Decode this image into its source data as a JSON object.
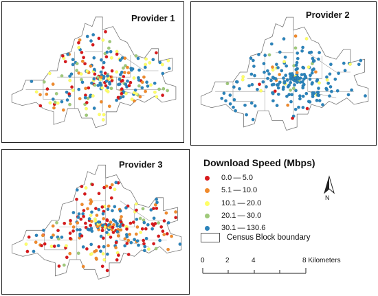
{
  "panels": [
    {
      "title": "Provider 1",
      "mix": [
        0.16,
        0.16,
        0.22,
        0.08,
        0.38
      ],
      "count": 230
    },
    {
      "title": "Provider 2",
      "mix": [
        0.03,
        0.05,
        0.04,
        0.04,
        0.84
      ],
      "count": 210
    },
    {
      "title": "Provider 3",
      "mix": [
        0.3,
        0.28,
        0.12,
        0.04,
        0.26
      ],
      "count": 260
    }
  ],
  "legend": {
    "title": "Download Speed (Mbps)",
    "classes": [
      {
        "label": "0.0 — 5.0",
        "color": "#d7191c"
      },
      {
        "label": "5.1 — 10.0",
        "color": "#f08a2c"
      },
      {
        "label": "10.1 — 20.0",
        "color": "#ffff66"
      },
      {
        "label": "20.1 — 30.0",
        "color": "#9fc97a"
      },
      {
        "label": "30.1 — 130.6",
        "color": "#2b83ba"
      }
    ],
    "census_label": "Census Block boundary"
  },
  "north_label": "N",
  "scale": {
    "ticks": [
      "0",
      "2",
      "4",
      "8 Kilometers"
    ]
  }
}
